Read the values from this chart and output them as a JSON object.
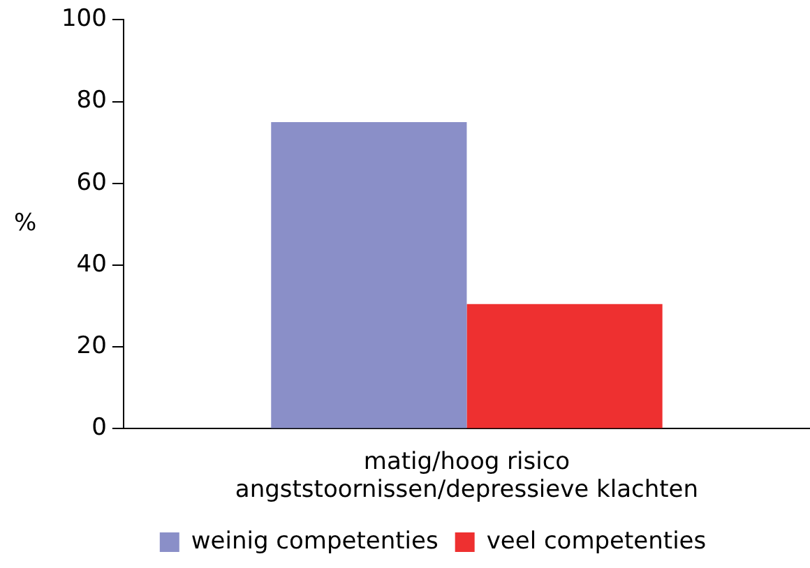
{
  "chart_data": {
    "type": "bar",
    "ylabel": "%",
    "categories": [
      "matig/hoog risico\nangststoornissen/depressieve klachten"
    ],
    "series": [
      {
        "name": "weinig competenties",
        "color": "#8a8fc8",
        "values": [
          75
        ]
      },
      {
        "name": "veel competenties",
        "color": "#ee3030",
        "values": [
          30.5
        ]
      }
    ],
    "ylim": [
      0,
      100
    ],
    "yticks": [
      0,
      20,
      40,
      60,
      80,
      100
    ],
    "grid": false,
    "legend": "bottom"
  }
}
